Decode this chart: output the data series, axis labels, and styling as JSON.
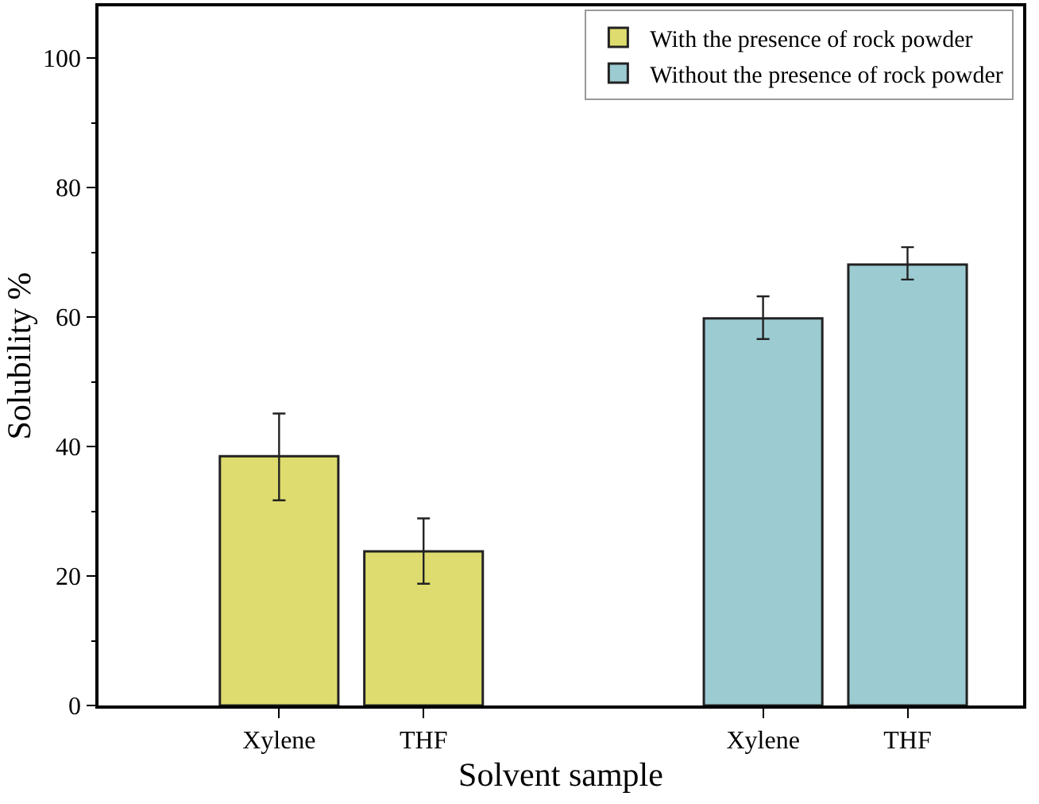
{
  "chart_data": {
    "type": "bar",
    "xlabel": "Solvent sample",
    "ylabel": "Solubility %",
    "categories": [
      "Xylene",
      "THF",
      "Xylene",
      "THF"
    ],
    "series": [
      {
        "name": "With the presence of rock powder",
        "color": "#dedc6e",
        "values": [
          38.5,
          23.8,
          null,
          null
        ],
        "errors": [
          [
            31.7,
            45.1
          ],
          [
            18.8,
            28.9
          ],
          null,
          null
        ]
      },
      {
        "name": "Without the presence of rock powder",
        "color": "#9ccbd2",
        "values": [
          null,
          null,
          59.8,
          68.1
        ],
        "errors": [
          null,
          null,
          [
            56.6,
            63.2
          ],
          [
            65.8,
            70.8
          ]
        ]
      }
    ],
    "ylim": [
      0,
      108
    ],
    "yticks": [
      0,
      20,
      40,
      60,
      80,
      100
    ],
    "grid": false,
    "legend": "top right"
  }
}
